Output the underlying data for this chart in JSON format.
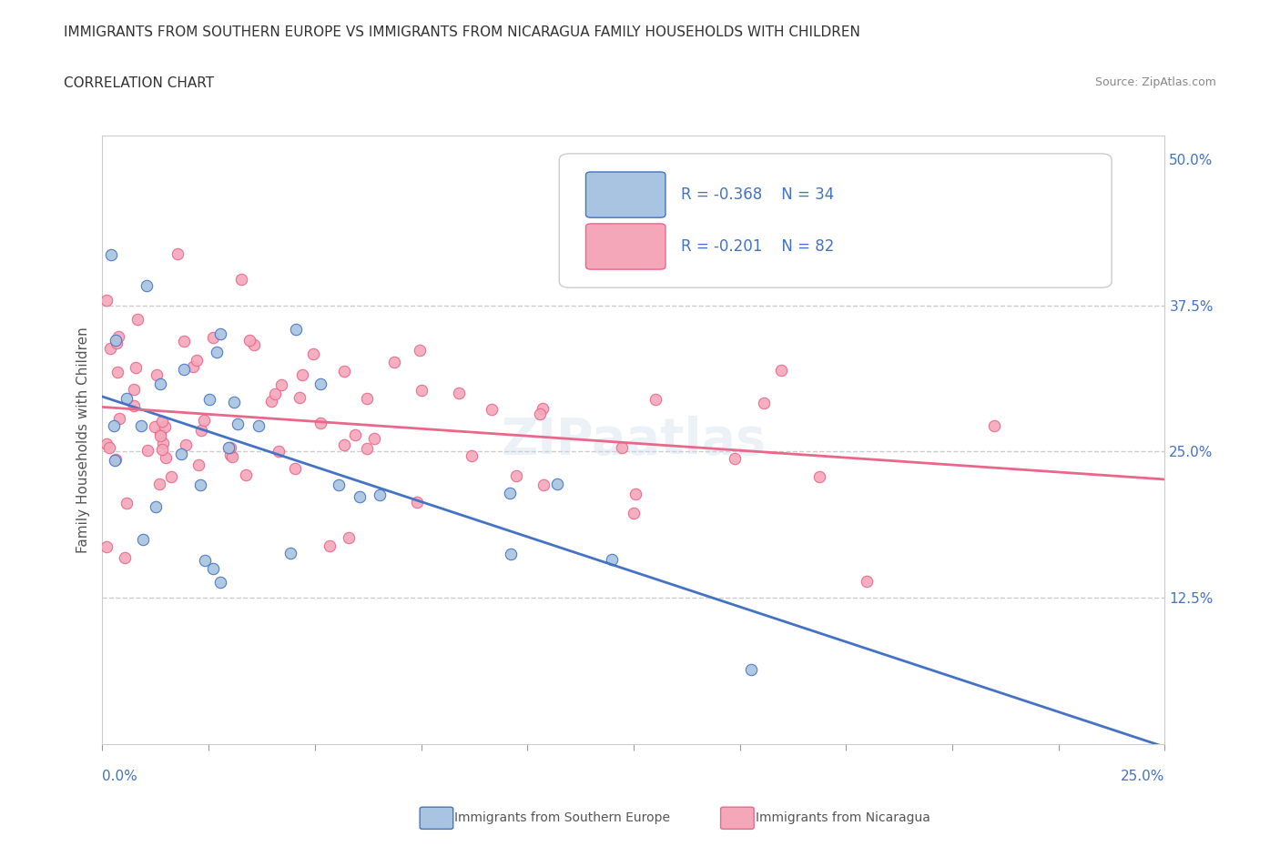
{
  "title": "IMMIGRANTS FROM SOUTHERN EUROPE VS IMMIGRANTS FROM NICARAGUA FAMILY HOUSEHOLDS WITH CHILDREN",
  "subtitle": "CORRELATION CHART",
  "source": "Source: ZipAtlas.com",
  "xmin": 0.0,
  "xmax": 0.25,
  "ymin": 0.0,
  "ymax": 0.52,
  "series1_label": "Immigrants from Southern Europe",
  "series1_R": "-0.368",
  "series1_N": "34",
  "series1_color": "#a8c4e0",
  "series1_line_color": "#4472c4",
  "series2_label": "Immigrants from Nicaragua",
  "series2_R": "-0.201",
  "series2_N": "82",
  "series2_color": "#f4a7b9",
  "series2_line_color": "#e8678a",
  "bg_color": "#ffffff",
  "grid_color": "#cccccc",
  "legend_text_color": "#4472c4",
  "yticks": [
    0.125,
    0.25,
    0.375,
    0.5
  ],
  "ytick_labels": [
    "12.5%",
    "25.0%",
    "37.5%",
    "50.0%"
  ]
}
